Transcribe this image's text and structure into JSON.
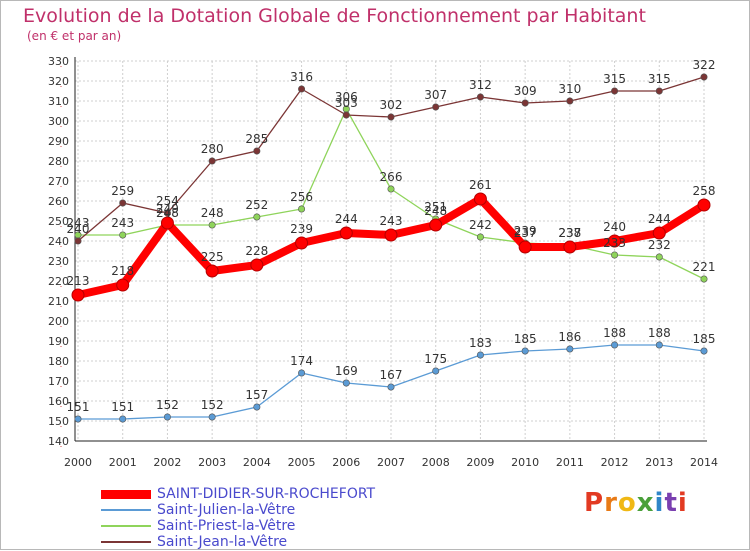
{
  "chart_data": {
    "type": "line",
    "title": "Evolution de la Dotation Globale de Fonctionnement par Habitant",
    "subtitle": "(en € et par an)",
    "xlabel": "",
    "ylabel": "",
    "ylim": [
      140,
      330
    ],
    "ytick_step": 10,
    "grid": true,
    "x": [
      "2000",
      "2001",
      "2002",
      "2003",
      "2004",
      "2005",
      "2006",
      "2007",
      "2008",
      "2009",
      "2010",
      "2011",
      "2012",
      "2013",
      "2014"
    ],
    "series": [
      {
        "name": "SAINT-DIDIER-SUR-ROCHEFORT",
        "color": "#ff0000",
        "values": [
          213,
          218,
          249,
          225,
          228,
          239,
          244,
          243,
          248,
          261,
          237,
          237,
          240,
          244,
          258
        ]
      },
      {
        "name": "Saint-Julien-la-Vêtre",
        "color": "#5b9bd5",
        "values": [
          151,
          151,
          152,
          152,
          157,
          174,
          169,
          167,
          175,
          183,
          185,
          186,
          188,
          188,
          185
        ]
      },
      {
        "name": "Saint-Priest-la-Vêtre",
        "color": "#8fd45b",
        "values": [
          243,
          243,
          248,
          248,
          252,
          256,
          306,
          266,
          251,
          242,
          239,
          238,
          233,
          232,
          221
        ]
      },
      {
        "name": "Saint-Jean-la-Vêtre",
        "color": "#7b3535",
        "values": [
          240,
          259,
          254,
          280,
          285,
          316,
          303,
          302,
          307,
          312,
          309,
          310,
          315,
          315,
          322
        ]
      }
    ],
    "legend_position": "bottom-left"
  },
  "logo": {
    "letters": [
      "P",
      "r",
      "o",
      "x",
      "i",
      "t",
      "i"
    ],
    "colors": [
      "#e23a22",
      "#e87a16",
      "#f0b814",
      "#4aa03a",
      "#2f86c8",
      "#7a3fb0",
      "#e23a22"
    ]
  }
}
